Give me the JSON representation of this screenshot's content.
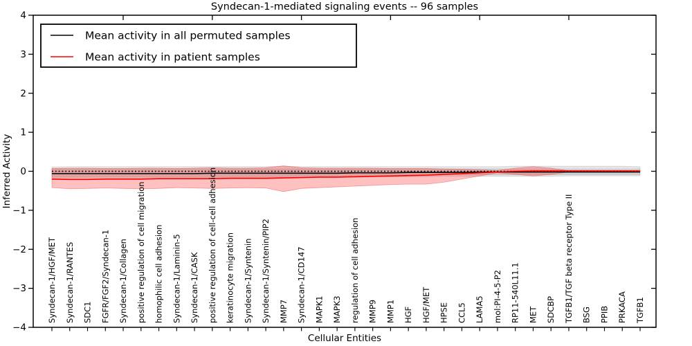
{
  "chart_data": {
    "type": "line",
    "title": "Syndecan-1-mediated signaling events -- 96 samples",
    "xlabel": "Cellular Entities",
    "ylabel": "Inferred Activity",
    "ylim": [
      -4,
      4
    ],
    "yticks": [
      4,
      3,
      2,
      1,
      0,
      -1,
      -2,
      -3,
      -4
    ],
    "grid": false,
    "legend_position": "upper left",
    "categories": [
      "Syndecan-1/HGF/MET",
      "Syndecan-1/RANTES",
      "SDC1",
      "FGFR/FGF2/Syndecan-1",
      "Syndecan-1/Collagen",
      "positive regulation of cell migration",
      "homophilic cell adhesion",
      "Syndecan-1/Laminin-5",
      "Syndecan-1/CASK",
      "positive regulation of cell-cell adhesion",
      "keratinocyte migration",
      "Syndecan-1/Syntenin",
      "Syndecan-1/Syntenin/PIP2",
      "MMP7",
      "Syndecan-1/CD147",
      "MAPK1",
      "MAPK3",
      "regulation of cell adhesion",
      "MMP9",
      "MMP1",
      "HGF",
      "HGF/MET",
      "HPSE",
      "CCL5",
      "LAMA5",
      "mol:PI-4-5-P2",
      "RP11-540L11.1",
      "MET",
      "SDCBP",
      "TGFB1/TGF beta receptor Type II",
      "BSG",
      "PPIB",
      "PRKACA",
      "TGFB1"
    ],
    "series": [
      {
        "name": "Mean activity in all permuted samples",
        "color": "#000000",
        "style": "solid",
        "values": [
          -0.06,
          -0.06,
          -0.06,
          -0.06,
          -0.06,
          -0.06,
          -0.06,
          -0.06,
          -0.06,
          -0.05,
          -0.05,
          -0.05,
          -0.05,
          -0.05,
          -0.05,
          -0.05,
          -0.05,
          -0.04,
          -0.04,
          -0.04,
          -0.03,
          -0.03,
          -0.03,
          -0.03,
          -0.02,
          -0.02,
          -0.02,
          -0.02,
          -0.02,
          -0.02,
          -0.02,
          -0.02,
          -0.02,
          -0.02
        ]
      },
      {
        "name": "Mean activity in patient samples",
        "color": "#ff0000",
        "style": "solid",
        "values": [
          -0.2,
          -0.21,
          -0.21,
          -0.2,
          -0.2,
          -0.2,
          -0.19,
          -0.19,
          -0.19,
          -0.19,
          -0.18,
          -0.18,
          -0.18,
          -0.17,
          -0.16,
          -0.15,
          -0.15,
          -0.14,
          -0.13,
          -0.12,
          -0.11,
          -0.1,
          -0.08,
          -0.06,
          -0.04,
          -0.02,
          0.0,
          0.01,
          0.01,
          0.01,
          0.01,
          0.01,
          0.01,
          0.01
        ]
      }
    ],
    "zero_line": {
      "value": 0,
      "style": "dotted",
      "color": "#000000"
    },
    "bands": [
      {
        "name": "permuted-band-outer",
        "color": "rgba(130,130,130,0.20)",
        "edge": "rgba(130,130,130,0.25)",
        "upper": [
          0.11,
          0.12,
          0.12,
          0.12,
          0.12,
          0.12,
          0.12,
          0.12,
          0.12,
          0.12,
          0.12,
          0.12,
          0.12,
          0.13,
          0.12,
          0.12,
          0.12,
          0.12,
          0.12,
          0.12,
          0.12,
          0.12,
          0.12,
          0.12,
          0.12,
          0.12,
          0.13,
          0.13,
          0.13,
          0.13,
          0.13,
          0.13,
          0.13,
          0.12
        ],
        "lower": [
          -0.17,
          -0.17,
          -0.17,
          -0.17,
          -0.17,
          -0.17,
          -0.16,
          -0.16,
          -0.16,
          -0.16,
          -0.16,
          -0.16,
          -0.16,
          -0.16,
          -0.15,
          -0.15,
          -0.15,
          -0.15,
          -0.14,
          -0.14,
          -0.14,
          -0.14,
          -0.13,
          -0.13,
          -0.13,
          -0.13,
          -0.13,
          -0.13,
          -0.13,
          -0.12,
          -0.12,
          -0.12,
          -0.12,
          -0.12
        ]
      },
      {
        "name": "permuted-band-inner",
        "color": "rgba(130,130,130,0.20)",
        "edge": "rgba(130,130,130,0.25)",
        "upper": [
          0.06,
          0.06,
          0.06,
          0.06,
          0.06,
          0.06,
          0.06,
          0.06,
          0.06,
          0.06,
          0.06,
          0.06,
          0.06,
          0.06,
          0.06,
          0.06,
          0.06,
          0.06,
          0.06,
          0.06,
          0.06,
          0.06,
          0.06,
          0.06,
          0.06,
          0.06,
          0.06,
          0.06,
          0.06,
          0.06,
          0.06,
          0.06,
          0.06,
          0.06
        ],
        "lower": [
          -0.14,
          -0.14,
          -0.14,
          -0.14,
          -0.14,
          -0.14,
          -0.14,
          -0.14,
          -0.14,
          -0.14,
          -0.14,
          -0.14,
          -0.14,
          -0.14,
          -0.12,
          -0.12,
          -0.12,
          -0.12,
          -0.12,
          -0.12,
          -0.12,
          -0.12,
          -0.09,
          -0.09,
          -0.09,
          -0.09,
          -0.09,
          -0.09,
          -0.09,
          -0.09,
          -0.09,
          -0.09,
          -0.09,
          -0.09
        ]
      },
      {
        "name": "patient-band",
        "color": "rgba(255,60,60,0.32)",
        "edge": "rgba(225,60,60,0.45)",
        "upper": [
          0.07,
          0.08,
          0.08,
          0.07,
          0.07,
          0.08,
          0.08,
          0.07,
          0.08,
          0.09,
          0.08,
          0.08,
          0.09,
          0.14,
          0.09,
          0.08,
          0.08,
          0.08,
          0.08,
          0.07,
          0.07,
          0.07,
          0.06,
          0.05,
          0.04,
          0.02,
          0.08,
          0.12,
          0.08,
          0.01,
          0.01,
          0.01,
          0.01,
          0.01
        ],
        "lower": [
          -0.42,
          -0.45,
          -0.44,
          -0.43,
          -0.44,
          -0.45,
          -0.44,
          -0.42,
          -0.43,
          -0.44,
          -0.43,
          -0.42,
          -0.43,
          -0.52,
          -0.44,
          -0.42,
          -0.4,
          -0.38,
          -0.36,
          -0.34,
          -0.33,
          -0.33,
          -0.28,
          -0.2,
          -0.12,
          -0.04,
          -0.08,
          -0.12,
          -0.08,
          -0.02,
          -0.02,
          -0.02,
          -0.02,
          -0.02
        ]
      }
    ],
    "top_tick_indices": [
      4,
      9,
      14,
      19,
      24,
      29
    ]
  }
}
